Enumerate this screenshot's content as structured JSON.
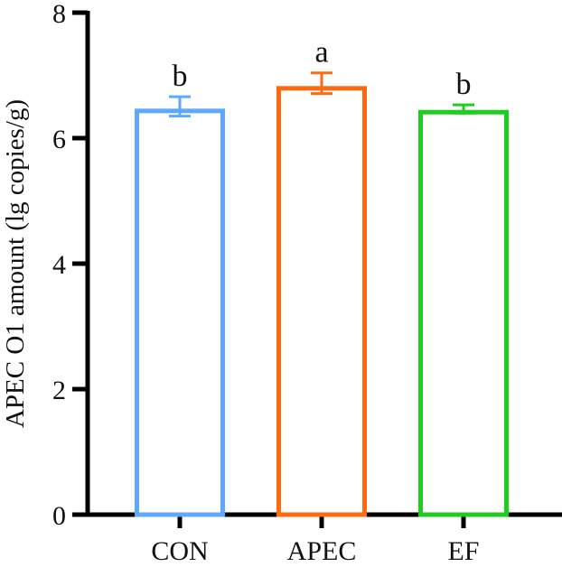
{
  "chart_data": {
    "type": "bar",
    "title": "",
    "xlabel": "",
    "ylabel": "APEC O1 amount (lg copies/g)",
    "ylim": [
      0,
      8
    ],
    "yticks": [
      0,
      2,
      4,
      6,
      8
    ],
    "grid": false,
    "legend": null,
    "categories": [
      "CON",
      "APEC",
      "EF"
    ],
    "values": [
      6.47,
      6.83,
      6.45
    ],
    "error_upper": [
      6.66,
      7.04,
      6.53
    ],
    "error_lower": [
      6.35,
      6.71,
      6.4
    ],
    "significance_letters": [
      "b",
      "a",
      "b"
    ],
    "colors": [
      "#5EA8FF",
      "#FF6A10",
      "#1FCC1F"
    ],
    "bar_style": "outline"
  },
  "labels": {
    "ylabel": "APEC O1 amount (lg copies/g)",
    "yticks": [
      "0",
      "2",
      "4",
      "6",
      "8"
    ],
    "categories": [
      "CON",
      "APEC",
      "EF"
    ],
    "letters": [
      "b",
      "a",
      "b"
    ]
  }
}
